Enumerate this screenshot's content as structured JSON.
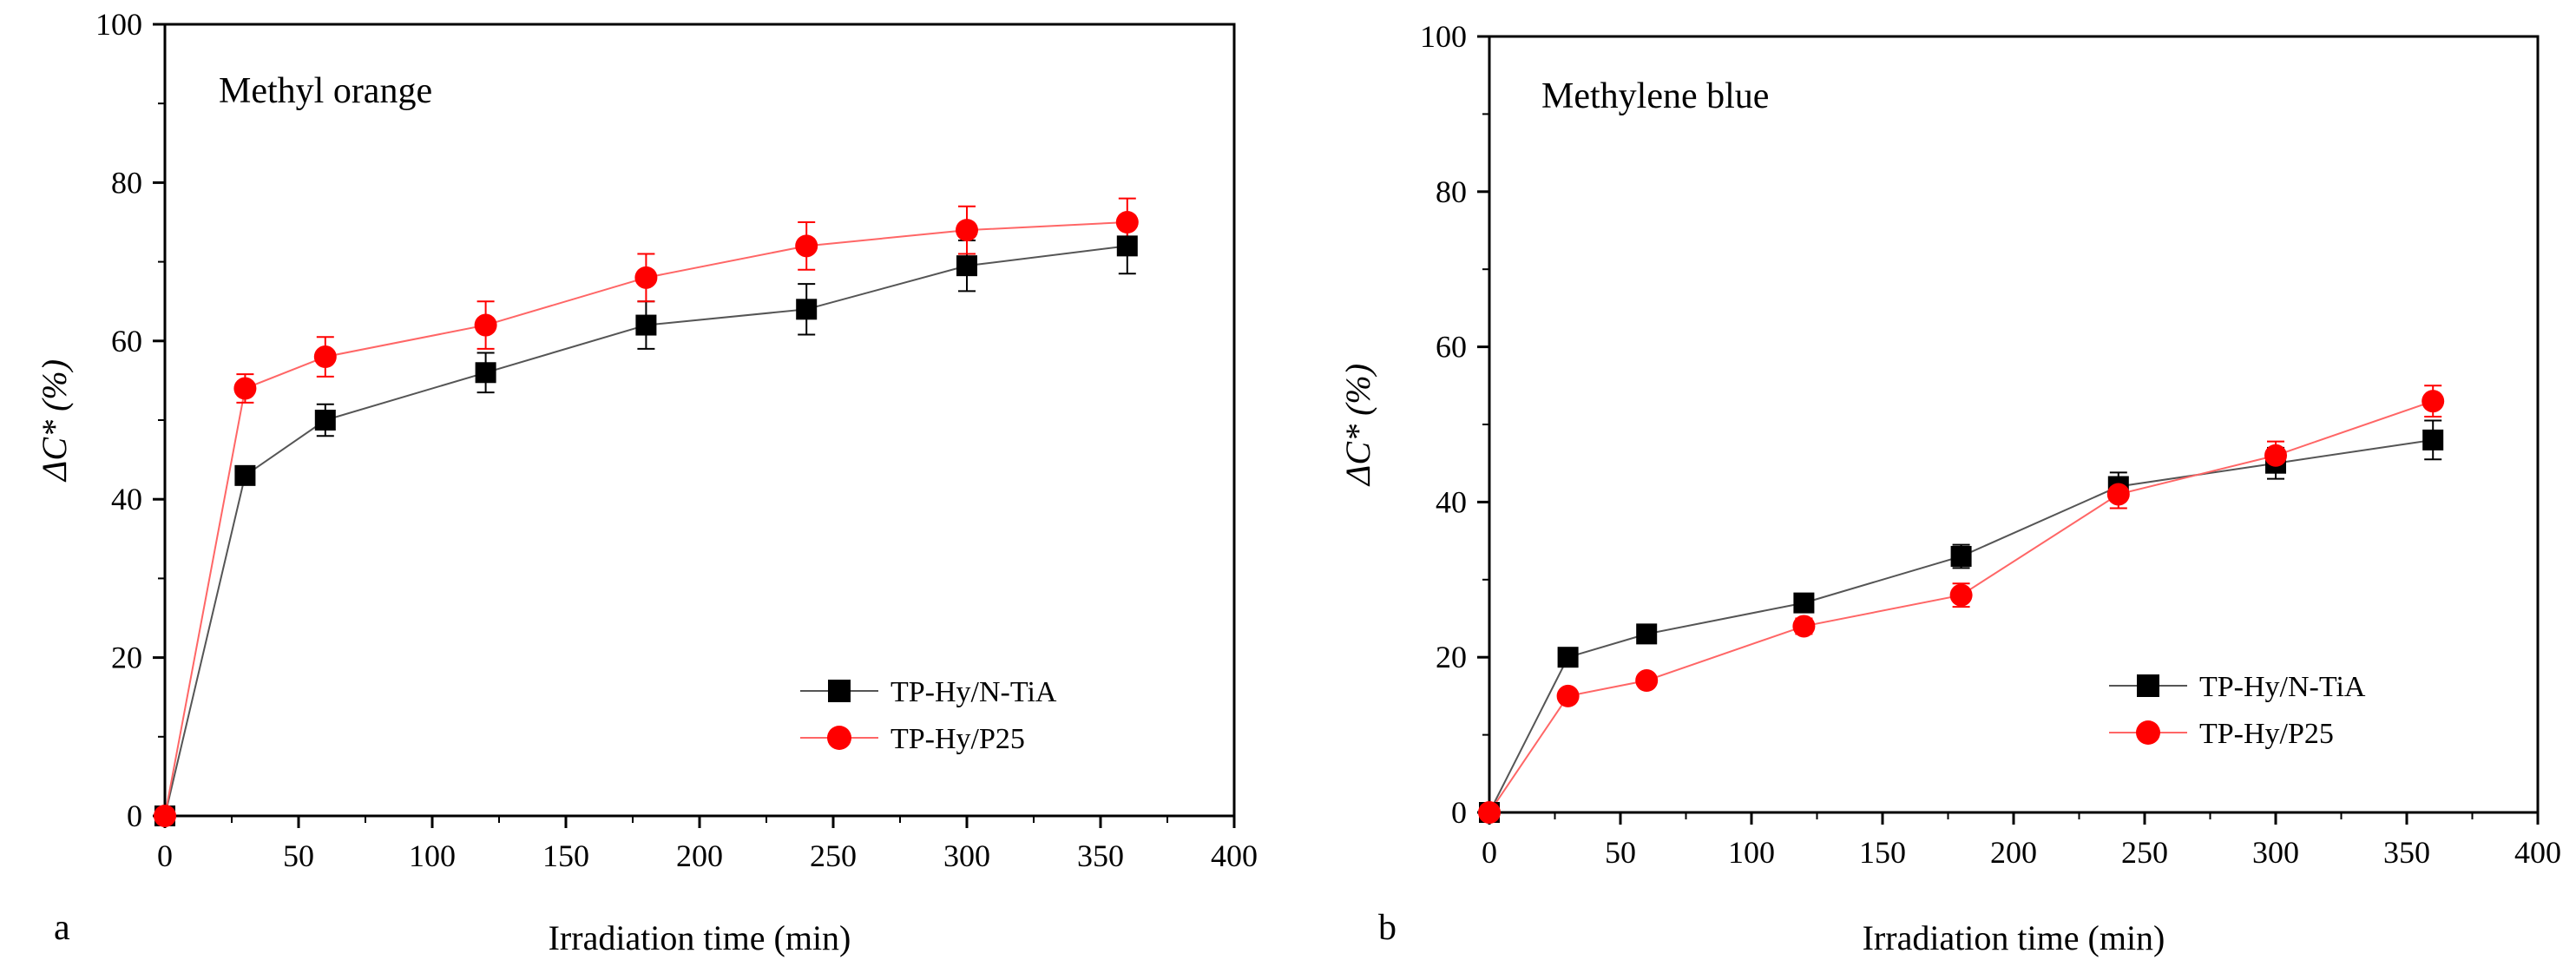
{
  "colors": {
    "series_black": "#000000",
    "series_red": "#ff0000",
    "line_black": "#555555",
    "line_red": "#ff6666",
    "axis": "#000000",
    "background": "#ffffff"
  },
  "chart_data": [
    {
      "type": "line",
      "panel_letter": "a",
      "title": "Methyl orange",
      "xlabel": "Irradiation time (min)",
      "ylabel": "ΔC* (%)",
      "xlim": [
        0,
        400
      ],
      "ylim": [
        0,
        100
      ],
      "xticks": [
        0,
        50,
        100,
        150,
        200,
        250,
        300,
        350,
        400
      ],
      "yticks": [
        0,
        20,
        40,
        60,
        80,
        100
      ],
      "legend_position": "bottom-right",
      "series": [
        {
          "name": "TP-Hy/N-TiA",
          "marker": "square",
          "color_key": "series_black",
          "line_key": "line_black",
          "x": [
            0,
            30,
            60,
            120,
            180,
            240,
            300,
            360
          ],
          "y": [
            0,
            43,
            50,
            56,
            62,
            64,
            69.5,
            72
          ],
          "err": [
            0,
            0.8,
            2.0,
            2.5,
            3.0,
            3.2,
            3.2,
            3.5
          ]
        },
        {
          "name": "TP-Hy/P25",
          "marker": "circle",
          "color_key": "series_red",
          "line_key": "line_red",
          "x": [
            0,
            30,
            60,
            120,
            180,
            240,
            300,
            360
          ],
          "y": [
            0,
            54,
            58,
            62,
            68,
            72,
            74,
            75
          ],
          "err": [
            0,
            1.8,
            2.5,
            3.0,
            3.0,
            3.0,
            3.0,
            3.0
          ]
        }
      ]
    },
    {
      "type": "line",
      "panel_letter": "b",
      "title": "Methylene blue",
      "xlabel": "Irradiation time (min)",
      "ylabel": "ΔC* (%)",
      "xlim": [
        0,
        400
      ],
      "ylim": [
        0,
        100
      ],
      "xticks": [
        0,
        50,
        100,
        150,
        200,
        250,
        300,
        350,
        400
      ],
      "yticks": [
        0,
        20,
        40,
        60,
        80,
        100
      ],
      "legend_position": "bottom-right",
      "series": [
        {
          "name": "TP-Hy/N-TiA",
          "marker": "square",
          "color_key": "series_black",
          "line_key": "line_black",
          "x": [
            0,
            30,
            60,
            120,
            180,
            240,
            300,
            360
          ],
          "y": [
            0,
            20,
            23,
            27,
            33,
            42,
            45,
            48
          ],
          "err": [
            0,
            0.8,
            0.8,
            1.0,
            1.5,
            1.8,
            2.0,
            2.5
          ]
        },
        {
          "name": "TP-Hy/P25",
          "marker": "circle",
          "color_key": "series_red",
          "line_key": "line_red",
          "x": [
            0,
            30,
            60,
            120,
            180,
            240,
            300,
            360
          ],
          "y": [
            0,
            15,
            17,
            24,
            28,
            41,
            46,
            53
          ],
          "err": [
            0,
            0.8,
            0.8,
            1.0,
            1.5,
            1.8,
            1.8,
            2.0
          ]
        }
      ]
    }
  ]
}
